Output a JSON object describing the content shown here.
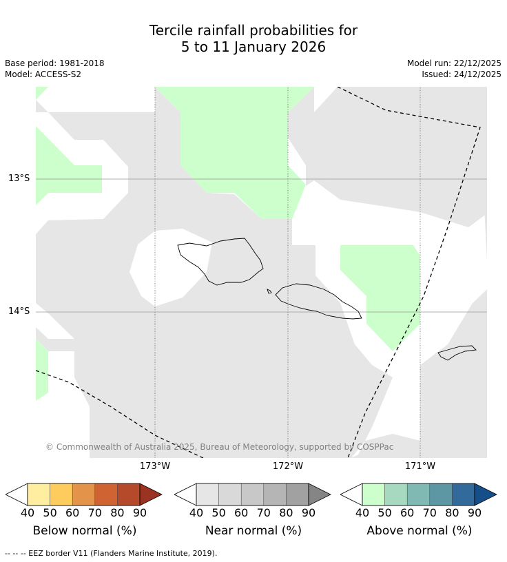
{
  "title": {
    "line1": "Tercile rainfall probabilities for",
    "line2": "5 to 11 January 2026"
  },
  "info": {
    "base_period": "Base period: 1981-2018",
    "model": "Model: ACCESS-S2",
    "model_run": "Model run: 22/12/2025",
    "issued": "Issued: 24/12/2025"
  },
  "map": {
    "lat_labels": [
      "13°S",
      "14°S"
    ],
    "lon_labels": [
      "173°W",
      "172°W",
      "171°W"
    ],
    "copyright": "© Commonwealth of Australia 2025, Bureau of Meteorology, supported by COSPPac",
    "colors": {
      "near_normal_region": "#e6e6e6",
      "above_normal_region": "#ccffcc",
      "background": "#ffffff"
    }
  },
  "colorbars": [
    {
      "label": "Below normal (%)",
      "ticks": [
        "40",
        "50",
        "60",
        "70",
        "80",
        "90"
      ],
      "colors": [
        "#ffeda0",
        "#fecc5c",
        "#e3934a",
        "#cf6332",
        "#b54a2b",
        "#9a3322"
      ]
    },
    {
      "label": "Near normal (%)",
      "ticks": [
        "40",
        "50",
        "60",
        "70",
        "80",
        "90"
      ],
      "colors": [
        "#e6e6e6",
        "#d9d9d9",
        "#c8c8c8",
        "#b5b5b5",
        "#a1a1a1",
        "#858585"
      ]
    },
    {
      "label": "Above normal (%)",
      "ticks": [
        "40",
        "50",
        "60",
        "70",
        "80",
        "90"
      ],
      "colors": [
        "#ccffcc",
        "#a6d9bf",
        "#80b8b3",
        "#5c97a3",
        "#336a9c",
        "#164e8a"
      ]
    }
  ],
  "footnote": "-- -- -- EEZ border V11 (Flanders Marine Institute, 2019)."
}
